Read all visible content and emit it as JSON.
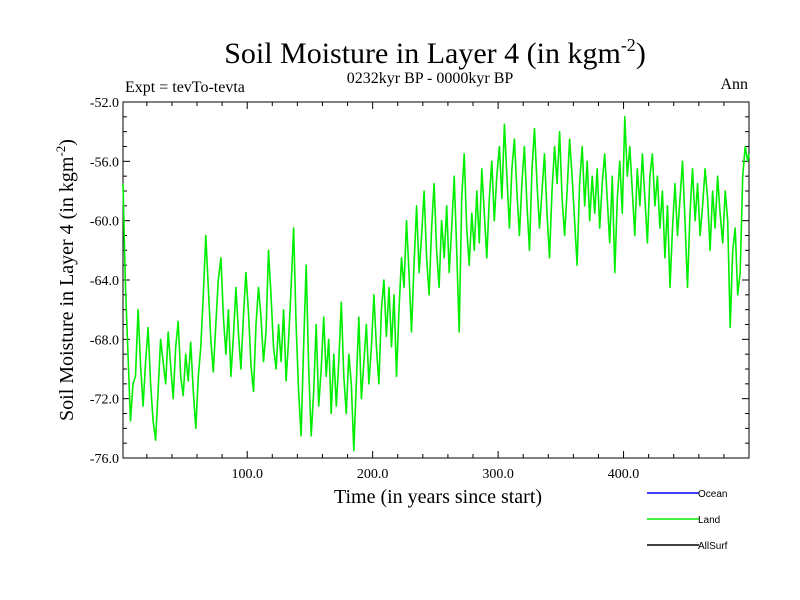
{
  "header": {
    "title_main": "Soil Moisture in Layer 4 (in kgm",
    "title_sup": "-2",
    "title_close": ")",
    "left_label": "Expt = tevTo-tevta",
    "center_label": "0232kyr BP - 0000kyr BP",
    "right_label": "Ann"
  },
  "chart_data": {
    "type": "line",
    "xlabel": "Time (in years since start)",
    "ylabel_main": "Soil Moisture in Layer 4 (in kgm",
    "ylabel_sup": "-2",
    "ylabel_close": ")",
    "xlim": [
      1,
      500
    ],
    "ylim": [
      -76.0,
      -52.0
    ],
    "x_ticks": [
      100,
      200,
      300,
      400
    ],
    "x_tick_labels": [
      "100.0",
      "200.0",
      "300.0",
      "400.0"
    ],
    "y_ticks": [
      -76,
      -72,
      -68,
      -64,
      -60,
      -56,
      -52
    ],
    "y_tick_labels": [
      "-76.0",
      "-72.0",
      "-68.0",
      "-64.0",
      "-60.0",
      "-56.0",
      "-52.0"
    ],
    "legend": [
      {
        "label": "Ocean",
        "color": "#0000ff"
      },
      {
        "label": "Land",
        "color": "#00ee00"
      },
      {
        "label": "AllSurf",
        "color": "#000000"
      }
    ],
    "series": [
      {
        "name": "Land",
        "color": "#00ee00",
        "points": [
          [
            1,
            -57.5
          ],
          [
            3,
            -64.5
          ],
          [
            5,
            -69.0
          ],
          [
            7,
            -73.5
          ],
          [
            9,
            -71.0
          ],
          [
            11,
            -70.5
          ],
          [
            13,
            -66.0
          ],
          [
            15,
            -69.8
          ],
          [
            17,
            -72.5
          ],
          [
            19,
            -69.5
          ],
          [
            21,
            -67.2
          ],
          [
            23,
            -71.0
          ],
          [
            25,
            -73.5
          ],
          [
            27,
            -74.8
          ],
          [
            29,
            -71.5
          ],
          [
            31,
            -68.0
          ],
          [
            33,
            -69.5
          ],
          [
            35,
            -71.0
          ],
          [
            37,
            -67.5
          ],
          [
            39,
            -69.8
          ],
          [
            41,
            -72.0
          ],
          [
            43,
            -68.5
          ],
          [
            45,
            -66.8
          ],
          [
            47,
            -70.5
          ],
          [
            49,
            -71.8
          ],
          [
            51,
            -69.0
          ],
          [
            53,
            -70.8
          ],
          [
            55,
            -68.2
          ],
          [
            57,
            -71.5
          ],
          [
            59,
            -74.0
          ],
          [
            61,
            -70.5
          ],
          [
            63,
            -68.5
          ],
          [
            65,
            -65.0
          ],
          [
            67,
            -61.0
          ],
          [
            69,
            -64.5
          ],
          [
            71,
            -68.0
          ],
          [
            73,
            -70.2
          ],
          [
            75,
            -67.0
          ],
          [
            77,
            -64.0
          ],
          [
            79,
            -62.5
          ],
          [
            81,
            -66.5
          ],
          [
            83,
            -69.0
          ],
          [
            85,
            -66.0
          ],
          [
            87,
            -70.5
          ],
          [
            89,
            -67.8
          ],
          [
            91,
            -64.5
          ],
          [
            93,
            -67.5
          ],
          [
            95,
            -70.0
          ],
          [
            97,
            -66.5
          ],
          [
            99,
            -63.5
          ],
          [
            101,
            -66.2
          ],
          [
            103,
            -69.8
          ],
          [
            105,
            -71.5
          ],
          [
            107,
            -67.0
          ],
          [
            109,
            -64.5
          ],
          [
            111,
            -66.5
          ],
          [
            113,
            -69.5
          ],
          [
            115,
            -67.5
          ],
          [
            117,
            -62.0
          ],
          [
            119,
            -65.0
          ],
          [
            121,
            -68.5
          ],
          [
            123,
            -70.0
          ],
          [
            125,
            -67.0
          ],
          [
            127,
            -69.5
          ],
          [
            129,
            -66.0
          ],
          [
            131,
            -70.8
          ],
          [
            133,
            -68.0
          ],
          [
            135,
            -64.5
          ],
          [
            137,
            -60.5
          ],
          [
            139,
            -67.0
          ],
          [
            141,
            -71.5
          ],
          [
            143,
            -74.5
          ],
          [
            145,
            -68.5
          ],
          [
            147,
            -63.0
          ],
          [
            149,
            -70.0
          ],
          [
            151,
            -74.5
          ],
          [
            153,
            -71.5
          ],
          [
            155,
            -67.0
          ],
          [
            157,
            -72.5
          ],
          [
            159,
            -70.0
          ],
          [
            161,
            -66.5
          ],
          [
            163,
            -70.5
          ],
          [
            165,
            -68.0
          ],
          [
            167,
            -73.0
          ],
          [
            169,
            -69.0
          ],
          [
            171,
            -72.5
          ],
          [
            173,
            -69.5
          ],
          [
            175,
            -65.5
          ],
          [
            177,
            -70.5
          ],
          [
            179,
            -73.0
          ],
          [
            181,
            -69.0
          ],
          [
            183,
            -71.0
          ],
          [
            185,
            -75.5
          ],
          [
            187,
            -71.0
          ],
          [
            189,
            -66.5
          ],
          [
            191,
            -72.0
          ],
          [
            193,
            -69.5
          ],
          [
            195,
            -67.0
          ],
          [
            197,
            -71.0
          ],
          [
            199,
            -68.5
          ],
          [
            201,
            -65.0
          ],
          [
            203,
            -68.5
          ],
          [
            205,
            -71.0
          ],
          [
            207,
            -66.0
          ],
          [
            209,
            -64.0
          ],
          [
            211,
            -67.8
          ],
          [
            213,
            -64.5
          ],
          [
            215,
            -68.5
          ],
          [
            217,
            -65.0
          ],
          [
            219,
            -70.5
          ],
          [
            221,
            -66.0
          ],
          [
            223,
            -62.5
          ],
          [
            225,
            -64.5
          ],
          [
            227,
            -60.0
          ],
          [
            229,
            -63.5
          ],
          [
            231,
            -67.5
          ],
          [
            233,
            -63.0
          ],
          [
            235,
            -59.0
          ],
          [
            237,
            -63.5
          ],
          [
            239,
            -61.0
          ],
          [
            241,
            -58.0
          ],
          [
            243,
            -62.5
          ],
          [
            245,
            -65.0
          ],
          [
            247,
            -60.5
          ],
          [
            249,
            -57.5
          ],
          [
            251,
            -62.0
          ],
          [
            253,
            -64.5
          ],
          [
            255,
            -60.0
          ],
          [
            257,
            -62.5
          ],
          [
            259,
            -59.0
          ],
          [
            261,
            -63.5
          ],
          [
            263,
            -60.5
          ],
          [
            265,
            -57.0
          ],
          [
            267,
            -62.0
          ],
          [
            269,
            -67.5
          ],
          [
            271,
            -58.5
          ],
          [
            273,
            -55.5
          ],
          [
            275,
            -60.5
          ],
          [
            277,
            -63.0
          ],
          [
            279,
            -59.5
          ],
          [
            281,
            -62.0
          ],
          [
            283,
            -58.0
          ],
          [
            285,
            -61.5
          ],
          [
            287,
            -56.5
          ],
          [
            289,
            -59.5
          ],
          [
            291,
            -62.5
          ],
          [
            293,
            -58.5
          ],
          [
            295,
            -56.0
          ],
          [
            297,
            -60.0
          ],
          [
            299,
            -57.0
          ],
          [
            301,
            -55.0
          ],
          [
            303,
            -58.5
          ],
          [
            305,
            -53.5
          ],
          [
            307,
            -57.0
          ],
          [
            309,
            -60.5
          ],
          [
            311,
            -56.5
          ],
          [
            313,
            -54.5
          ],
          [
            315,
            -58.0
          ],
          [
            317,
            -61.0
          ],
          [
            319,
            -57.5
          ],
          [
            321,
            -55.0
          ],
          [
            323,
            -59.0
          ],
          [
            325,
            -62.0
          ],
          [
            327,
            -56.5
          ],
          [
            329,
            -53.8
          ],
          [
            331,
            -57.5
          ],
          [
            333,
            -60.5
          ],
          [
            335,
            -58.0
          ],
          [
            337,
            -55.5
          ],
          [
            339,
            -59.5
          ],
          [
            341,
            -62.5
          ],
          [
            343,
            -58.0
          ],
          [
            345,
            -55.0
          ],
          [
            347,
            -57.5
          ],
          [
            349,
            -54.0
          ],
          [
            351,
            -58.5
          ],
          [
            353,
            -61.0
          ],
          [
            355,
            -58.0
          ],
          [
            357,
            -54.5
          ],
          [
            359,
            -57.0
          ],
          [
            361,
            -60.0
          ],
          [
            363,
            -63.0
          ],
          [
            365,
            -57.5
          ],
          [
            367,
            -55.0
          ],
          [
            369,
            -59.0
          ],
          [
            371,
            -56.0
          ],
          [
            373,
            -60.0
          ],
          [
            375,
            -57.0
          ],
          [
            377,
            -59.5
          ],
          [
            379,
            -56.5
          ],
          [
            381,
            -60.5
          ],
          [
            383,
            -57.5
          ],
          [
            385,
            -55.5
          ],
          [
            387,
            -58.5
          ],
          [
            389,
            -61.5
          ],
          [
            391,
            -57.0
          ],
          [
            393,
            -63.5
          ],
          [
            395,
            -58.5
          ],
          [
            397,
            -56.0
          ],
          [
            399,
            -59.5
          ],
          [
            401,
            -53.0
          ],
          [
            403,
            -57.0
          ],
          [
            405,
            -55.0
          ],
          [
            407,
            -58.0
          ],
          [
            409,
            -61.0
          ],
          [
            411,
            -56.5
          ],
          [
            413,
            -59.0
          ],
          [
            415,
            -55.5
          ],
          [
            417,
            -58.5
          ],
          [
            419,
            -61.5
          ],
          [
            421,
            -57.0
          ],
          [
            423,
            -55.5
          ],
          [
            425,
            -59.0
          ],
          [
            427,
            -57.0
          ],
          [
            429,
            -60.5
          ],
          [
            431,
            -58.0
          ],
          [
            433,
            -62.5
          ],
          [
            435,
            -59.0
          ],
          [
            437,
            -64.5
          ],
          [
            439,
            -60.5
          ],
          [
            441,
            -57.5
          ],
          [
            443,
            -61.0
          ],
          [
            445,
            -58.5
          ],
          [
            447,
            -56.0
          ],
          [
            449,
            -60.0
          ],
          [
            451,
            -64.5
          ],
          [
            453,
            -59.5
          ],
          [
            455,
            -56.5
          ],
          [
            457,
            -60.0
          ],
          [
            459,
            -57.5
          ],
          [
            461,
            -61.0
          ],
          [
            463,
            -59.0
          ],
          [
            465,
            -56.5
          ],
          [
            467,
            -58.5
          ],
          [
            469,
            -62.0
          ],
          [
            471,
            -58.0
          ],
          [
            473,
            -60.5
          ],
          [
            475,
            -57.0
          ],
          [
            477,
            -59.5
          ],
          [
            479,
            -61.5
          ],
          [
            481,
            -58.0
          ],
          [
            483,
            -60.0
          ],
          [
            485,
            -67.2
          ],
          [
            487,
            -62.0
          ],
          [
            489,
            -60.5
          ],
          [
            491,
            -65.0
          ],
          [
            493,
            -63.5
          ],
          [
            495,
            -57.0
          ],
          [
            497,
            -55.0
          ],
          [
            499,
            -56.0
          ],
          [
            500,
            -55.5
          ]
        ]
      }
    ]
  }
}
